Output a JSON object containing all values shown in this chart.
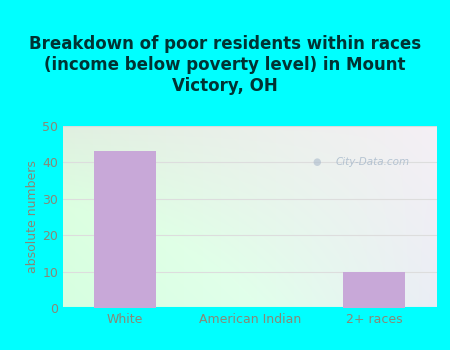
{
  "title": "Breakdown of poor residents within races\n(income below poverty level) in Mount\nVictory, OH",
  "categories": [
    "White",
    "American Indian",
    "2+ races"
  ],
  "values": [
    43,
    0,
    10
  ],
  "bar_color": "#c8a8d8",
  "ylabel": "absolute numbers",
  "ylim": [
    0,
    50
  ],
  "yticks": [
    0,
    10,
    20,
    30,
    40,
    50
  ],
  "background_color": "#00ffff",
  "plot_bg_color_topleft": "#d8edd8",
  "plot_bg_color_topright": "#f0f8f8",
  "plot_bg_color_bottomleft": "#c8e8c8",
  "plot_bg_color_bottomright": "#d8f0f0",
  "grid_color": "#dddddd",
  "title_fontsize": 12,
  "title_color": "#003333",
  "axis_label_fontsize": 9,
  "tick_fontsize": 9,
  "tick_color": "#888877",
  "watermark": "City-Data.com",
  "watermark_color": "#aabbcc",
  "bar_width": 0.5
}
